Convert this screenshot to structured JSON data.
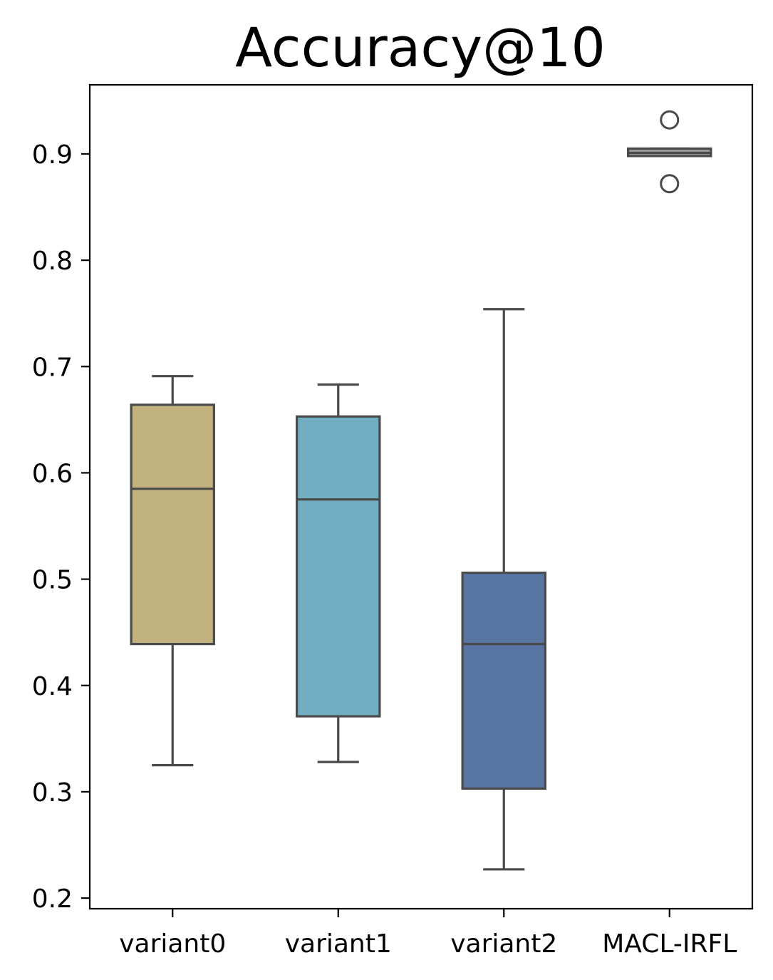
{
  "chart_data": {
    "type": "box",
    "title": "Accuracy@10",
    "xlabel": "",
    "ylabel": "",
    "ylim": [
      0.19,
      0.965
    ],
    "yticks": [
      0.2,
      0.3,
      0.4,
      0.5,
      0.6,
      0.7,
      0.8,
      0.9
    ],
    "ytick_labels": [
      "0.2",
      "0.3",
      "0.4",
      "0.5",
      "0.6",
      "0.7",
      "0.8",
      "0.9"
    ],
    "grid": false,
    "categories": [
      "variant0",
      "variant1",
      "variant2",
      "MACL-IRFL"
    ],
    "boxes": [
      {
        "whisker_low": 0.325,
        "q1": 0.439,
        "median": 0.585,
        "q3": 0.664,
        "whisker_high": 0.691,
        "outliers": [],
        "color": "#c2b280"
      },
      {
        "whisker_low": 0.328,
        "q1": 0.371,
        "median": 0.575,
        "q3": 0.653,
        "whisker_high": 0.683,
        "outliers": [],
        "color": "#72aec2"
      },
      {
        "whisker_low": 0.227,
        "q1": 0.303,
        "median": 0.439,
        "q3": 0.506,
        "whisker_high": 0.754,
        "outliers": [],
        "color": "#5875a4"
      },
      {
        "whisker_low": 0.898,
        "q1": 0.898,
        "median": 0.901,
        "q3": 0.905,
        "whisker_high": 0.905,
        "outliers": [
          0.932,
          0.872
        ],
        "color": "#9b9b9b"
      }
    ],
    "edge_color": "#4a4a4a"
  }
}
